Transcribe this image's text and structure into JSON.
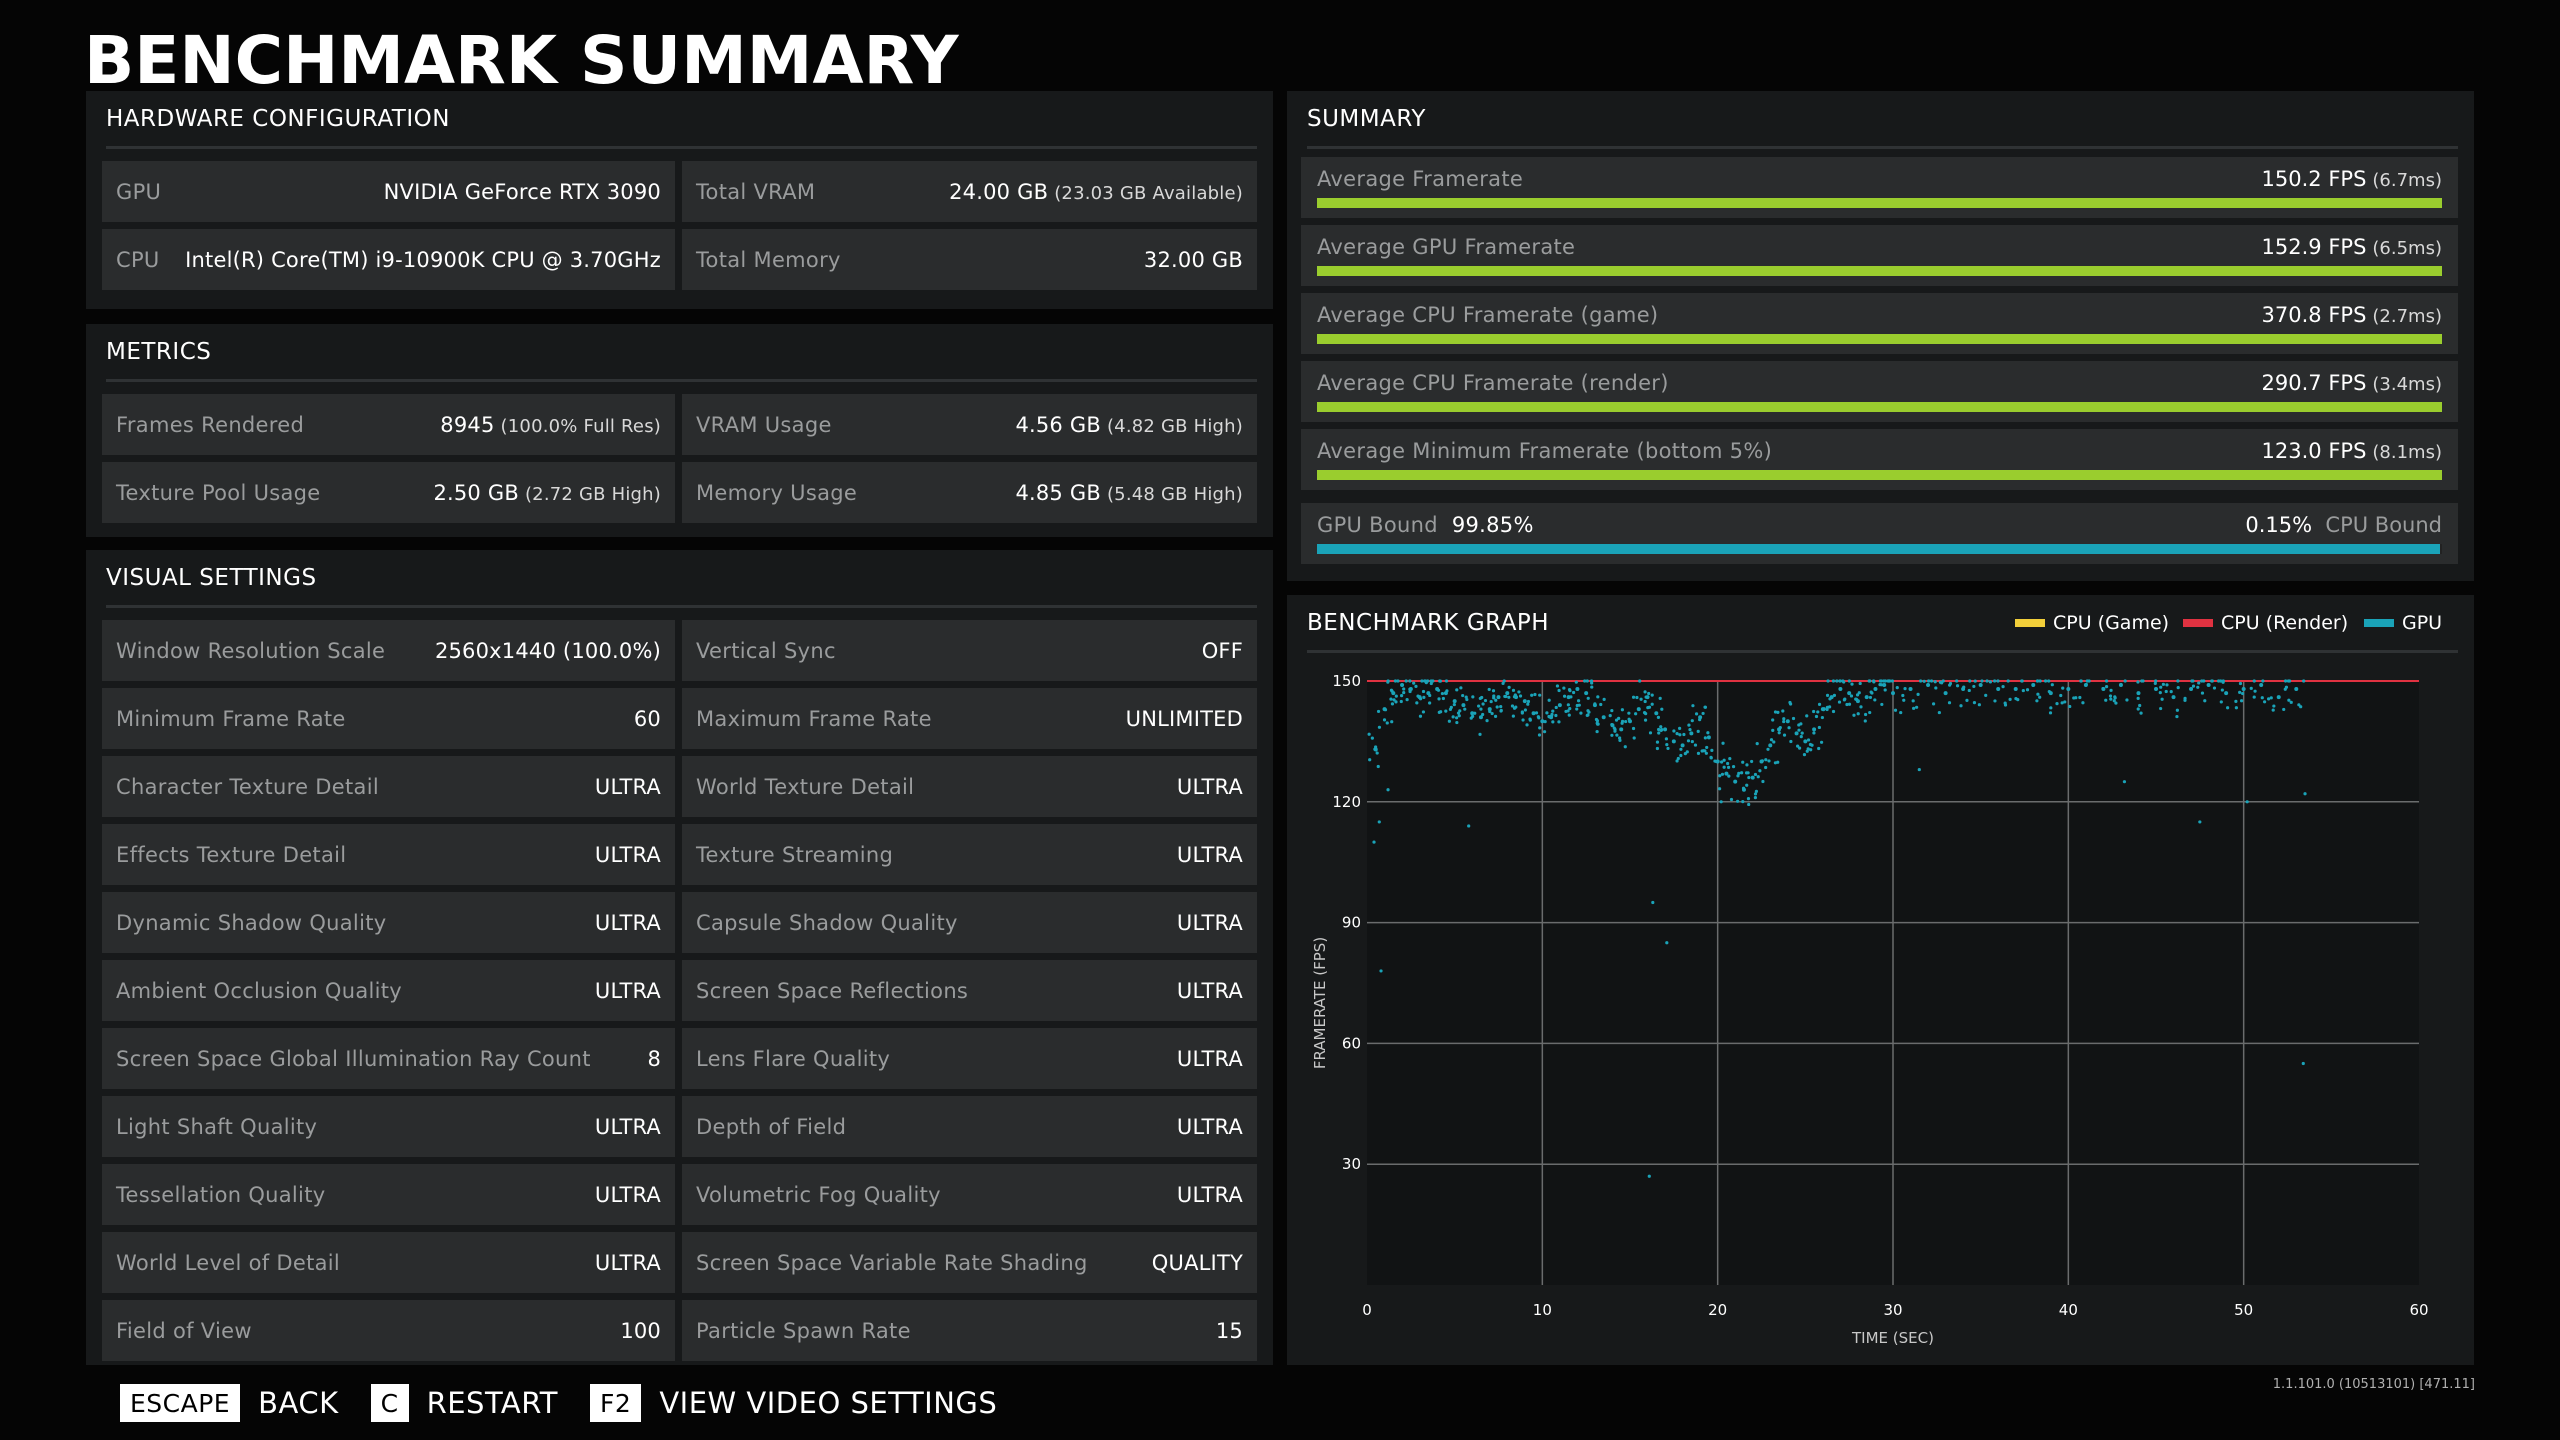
{
  "title": "BENCHMARK SUMMARY",
  "hardware": {
    "header": "HARDWARE CONFIGURATION",
    "rows": [
      [
        {
          "label": "GPU",
          "value": "NVIDIA GeForce RTX 3090",
          "sub": ""
        },
        {
          "label": "Total VRAM",
          "value": "24.00 GB",
          "sub": "(23.03 GB Available)"
        }
      ],
      [
        {
          "label": "CPU",
          "value": "Intel(R) Core(TM) i9-10900K CPU @ 3.70GHz",
          "sub": ""
        },
        {
          "label": "Total Memory",
          "value": "32.00 GB",
          "sub": ""
        }
      ]
    ]
  },
  "metrics": {
    "header": "METRICS",
    "rows": [
      [
        {
          "label": "Frames Rendered",
          "value": "8945",
          "sub": "(100.0% Full Res)"
        },
        {
          "label": "VRAM Usage",
          "value": "4.56 GB",
          "sub": "(4.82 GB High)"
        }
      ],
      [
        {
          "label": "Texture Pool Usage",
          "value": "2.50 GB",
          "sub": "(2.72 GB High)"
        },
        {
          "label": "Memory Usage",
          "value": "4.85 GB",
          "sub": "(5.48 GB High)"
        }
      ]
    ]
  },
  "visual": {
    "header": "VISUAL SETTINGS",
    "rows": [
      [
        {
          "label": "Window Resolution Scale",
          "value": "2560x1440 (100.0%)"
        },
        {
          "label": "Vertical Sync",
          "value": "OFF"
        }
      ],
      [
        {
          "label": "Minimum Frame Rate",
          "value": "60"
        },
        {
          "label": "Maximum Frame Rate",
          "value": "UNLIMITED"
        }
      ],
      [
        {
          "label": "Character Texture Detail",
          "value": "ULTRA"
        },
        {
          "label": "World Texture Detail",
          "value": "ULTRA"
        }
      ],
      [
        {
          "label": "Effects Texture Detail",
          "value": "ULTRA"
        },
        {
          "label": "Texture Streaming",
          "value": "ULTRA"
        }
      ],
      [
        {
          "label": "Dynamic Shadow Quality",
          "value": "ULTRA"
        },
        {
          "label": "Capsule Shadow Quality",
          "value": "ULTRA"
        }
      ],
      [
        {
          "label": "Ambient Occlusion Quality",
          "value": "ULTRA"
        },
        {
          "label": "Screen Space Reflections",
          "value": "ULTRA"
        }
      ],
      [
        {
          "label": "Screen Space Global Illumination Ray Count",
          "value": "8"
        },
        {
          "label": "Lens Flare Quality",
          "value": "ULTRA"
        }
      ],
      [
        {
          "label": "Light Shaft Quality",
          "value": "ULTRA"
        },
        {
          "label": "Depth of Field",
          "value": "ULTRA"
        }
      ],
      [
        {
          "label": "Tessellation Quality",
          "value": "ULTRA"
        },
        {
          "label": "Volumetric Fog Quality",
          "value": "ULTRA"
        }
      ],
      [
        {
          "label": "World Level of Detail",
          "value": "ULTRA"
        },
        {
          "label": "Screen Space Variable Rate Shading",
          "value": "QUALITY"
        }
      ],
      [
        {
          "label": "Field of View",
          "value": "100"
        },
        {
          "label": "Particle Spawn Rate",
          "value": "15"
        }
      ]
    ]
  },
  "summary": {
    "header": "SUMMARY",
    "rows": [
      {
        "label": "Average Framerate",
        "value": "150.2 FPS",
        "sub": "(6.7ms)",
        "fill": 1.0
      },
      {
        "label": "Average GPU Framerate",
        "value": "152.9 FPS",
        "sub": "(6.5ms)",
        "fill": 1.0
      },
      {
        "label": "Average CPU Framerate (game)",
        "value": "370.8 FPS",
        "sub": "(2.7ms)",
        "fill": 1.0
      },
      {
        "label": "Average CPU Framerate (render)",
        "value": "290.7 FPS",
        "sub": "(3.4ms)",
        "fill": 1.0
      },
      {
        "label": "Average Minimum Framerate (bottom 5%)",
        "value": "123.0 FPS",
        "sub": "(8.1ms)",
        "fill": 1.0
      }
    ],
    "bound": {
      "gpu_label": "GPU Bound",
      "gpu_value": "99.85%",
      "cpu_label": "CPU Bound",
      "cpu_value": "0.15%",
      "gpu_fraction": 0.9985
    },
    "colors": {
      "bar": "#9acd2e",
      "bound": "#1aa3b8"
    }
  },
  "graph": {
    "header": "BENCHMARK GRAPH",
    "legend": [
      {
        "name": "CPU (Game)",
        "color": "#f2cf3a"
      },
      {
        "name": "CPU (Render)",
        "color": "#e03241"
      },
      {
        "name": "GPU",
        "color": "#1aa3b8"
      }
    ]
  },
  "chart_data": {
    "type": "scatter",
    "xlabel": "TIME (SEC)",
    "ylabel": "FRAMERATE (FPS)",
    "xlim": [
      0,
      60
    ],
    "ylim": [
      0,
      150
    ],
    "xticks": [
      0,
      10,
      20,
      30,
      40,
      50,
      60
    ],
    "yticks": [
      30,
      60,
      90,
      120,
      150
    ],
    "grid": true,
    "series": [
      {
        "name": "CPU (Render)",
        "color": "#e03241",
        "x": [
          0,
          60
        ],
        "y": [
          150,
          150
        ]
      },
      {
        "name": "GPU",
        "color": "#1aa3b8",
        "x": [
          0.5,
          1,
          1.5,
          2,
          2.5,
          3,
          3.5,
          4,
          4.5,
          5,
          5.5,
          6,
          6.5,
          7,
          7.5,
          8,
          8.5,
          9,
          9.5,
          10,
          10.5,
          11,
          11.5,
          12,
          12.5,
          13,
          13.5,
          14,
          14.5,
          15,
          15.5,
          16,
          16.5,
          17,
          17.5,
          18,
          18.5,
          19,
          19.5,
          20,
          20.5,
          21,
          21.5,
          22,
          22.5,
          23,
          23.5,
          24,
          24.5,
          25,
          25.5,
          26,
          26.5,
          27,
          27.5,
          28,
          28.5,
          29,
          29.5,
          30,
          31,
          32,
          33,
          34,
          35,
          36,
          37,
          38,
          39,
          40,
          41,
          42,
          43,
          44,
          45,
          46,
          47,
          48,
          49,
          50,
          51,
          52,
          53
        ],
        "y": [
          133,
          143,
          147,
          149,
          148,
          146,
          147,
          148,
          147,
          145,
          144,
          142,
          141,
          143,
          146,
          147,
          146,
          145,
          142,
          140,
          141,
          144,
          146,
          148,
          147,
          144,
          141,
          139,
          138,
          140,
          143,
          146,
          142,
          138,
          135,
          134,
          137,
          141,
          136,
          130,
          127,
          125,
          123,
          126,
          130,
          134,
          138,
          140,
          137,
          135,
          138,
          143,
          146,
          148,
          147,
          145,
          146,
          148,
          149,
          147,
          148,
          149,
          147,
          148,
          149,
          148,
          148,
          149,
          147,
          148,
          149,
          148,
          149,
          147,
          148,
          146,
          148,
          149,
          147,
          148,
          149,
          146,
          148
        ]
      },
      {
        "name": "GPU outliers",
        "color": "#1aa3b8",
        "x": [
          0.7,
          0.4,
          1.2,
          5.8,
          17.1,
          16.3,
          20.2,
          31.5,
          43.2,
          47.5,
          50.2,
          53.4,
          53.5,
          16.1,
          0.8
        ],
        "y": [
          115,
          110,
          123,
          114,
          85,
          95,
          120,
          128,
          125,
          115,
          120,
          55,
          122,
          27,
          78
        ]
      }
    ]
  },
  "footer": {
    "items": [
      {
        "key": "ESCAPE",
        "action": "BACK"
      },
      {
        "key": "C",
        "action": "RESTART"
      },
      {
        "key": "F2",
        "action": "VIEW VIDEO SETTINGS"
      }
    ]
  },
  "version": "1.1.101.0 (10513101) [471.11]"
}
